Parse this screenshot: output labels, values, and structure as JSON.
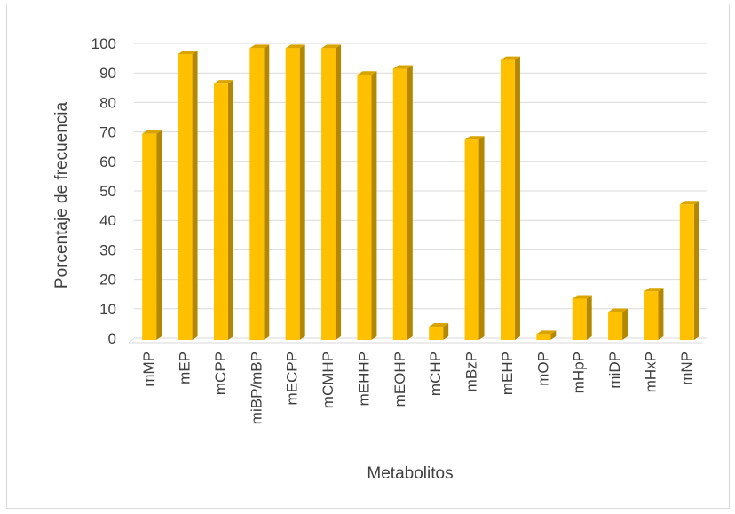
{
  "chart_data": {
    "type": "bar",
    "style": "3d-column",
    "xlabel": "Metabolitos",
    "ylabel": "Porcentaje de frecuencia",
    "ylim": [
      0,
      100
    ],
    "yticks": [
      0,
      10,
      20,
      30,
      40,
      50,
      60,
      70,
      80,
      90,
      100
    ],
    "grid": true,
    "legend": "none",
    "categories": [
      "mMP",
      "mEP",
      "mCPP",
      "miBP/mBP",
      "mECPP",
      "mCMHP",
      "mEHHP",
      "mEOHP",
      "mCHP",
      "mBzP",
      "mEHP",
      "mOP",
      "mHpP",
      "miDP",
      "mHxP",
      "mNP"
    ],
    "values": [
      70,
      97,
      87,
      99,
      99,
      99,
      90,
      92,
      4.5,
      68,
      95,
      2,
      14,
      9.5,
      16.5,
      46
    ],
    "colors": {
      "bar_front": "#ffc000",
      "bar_side": "#b38700",
      "bar_top": "#d9a400",
      "grid": "#d9d9d9",
      "text": "#404040"
    }
  }
}
